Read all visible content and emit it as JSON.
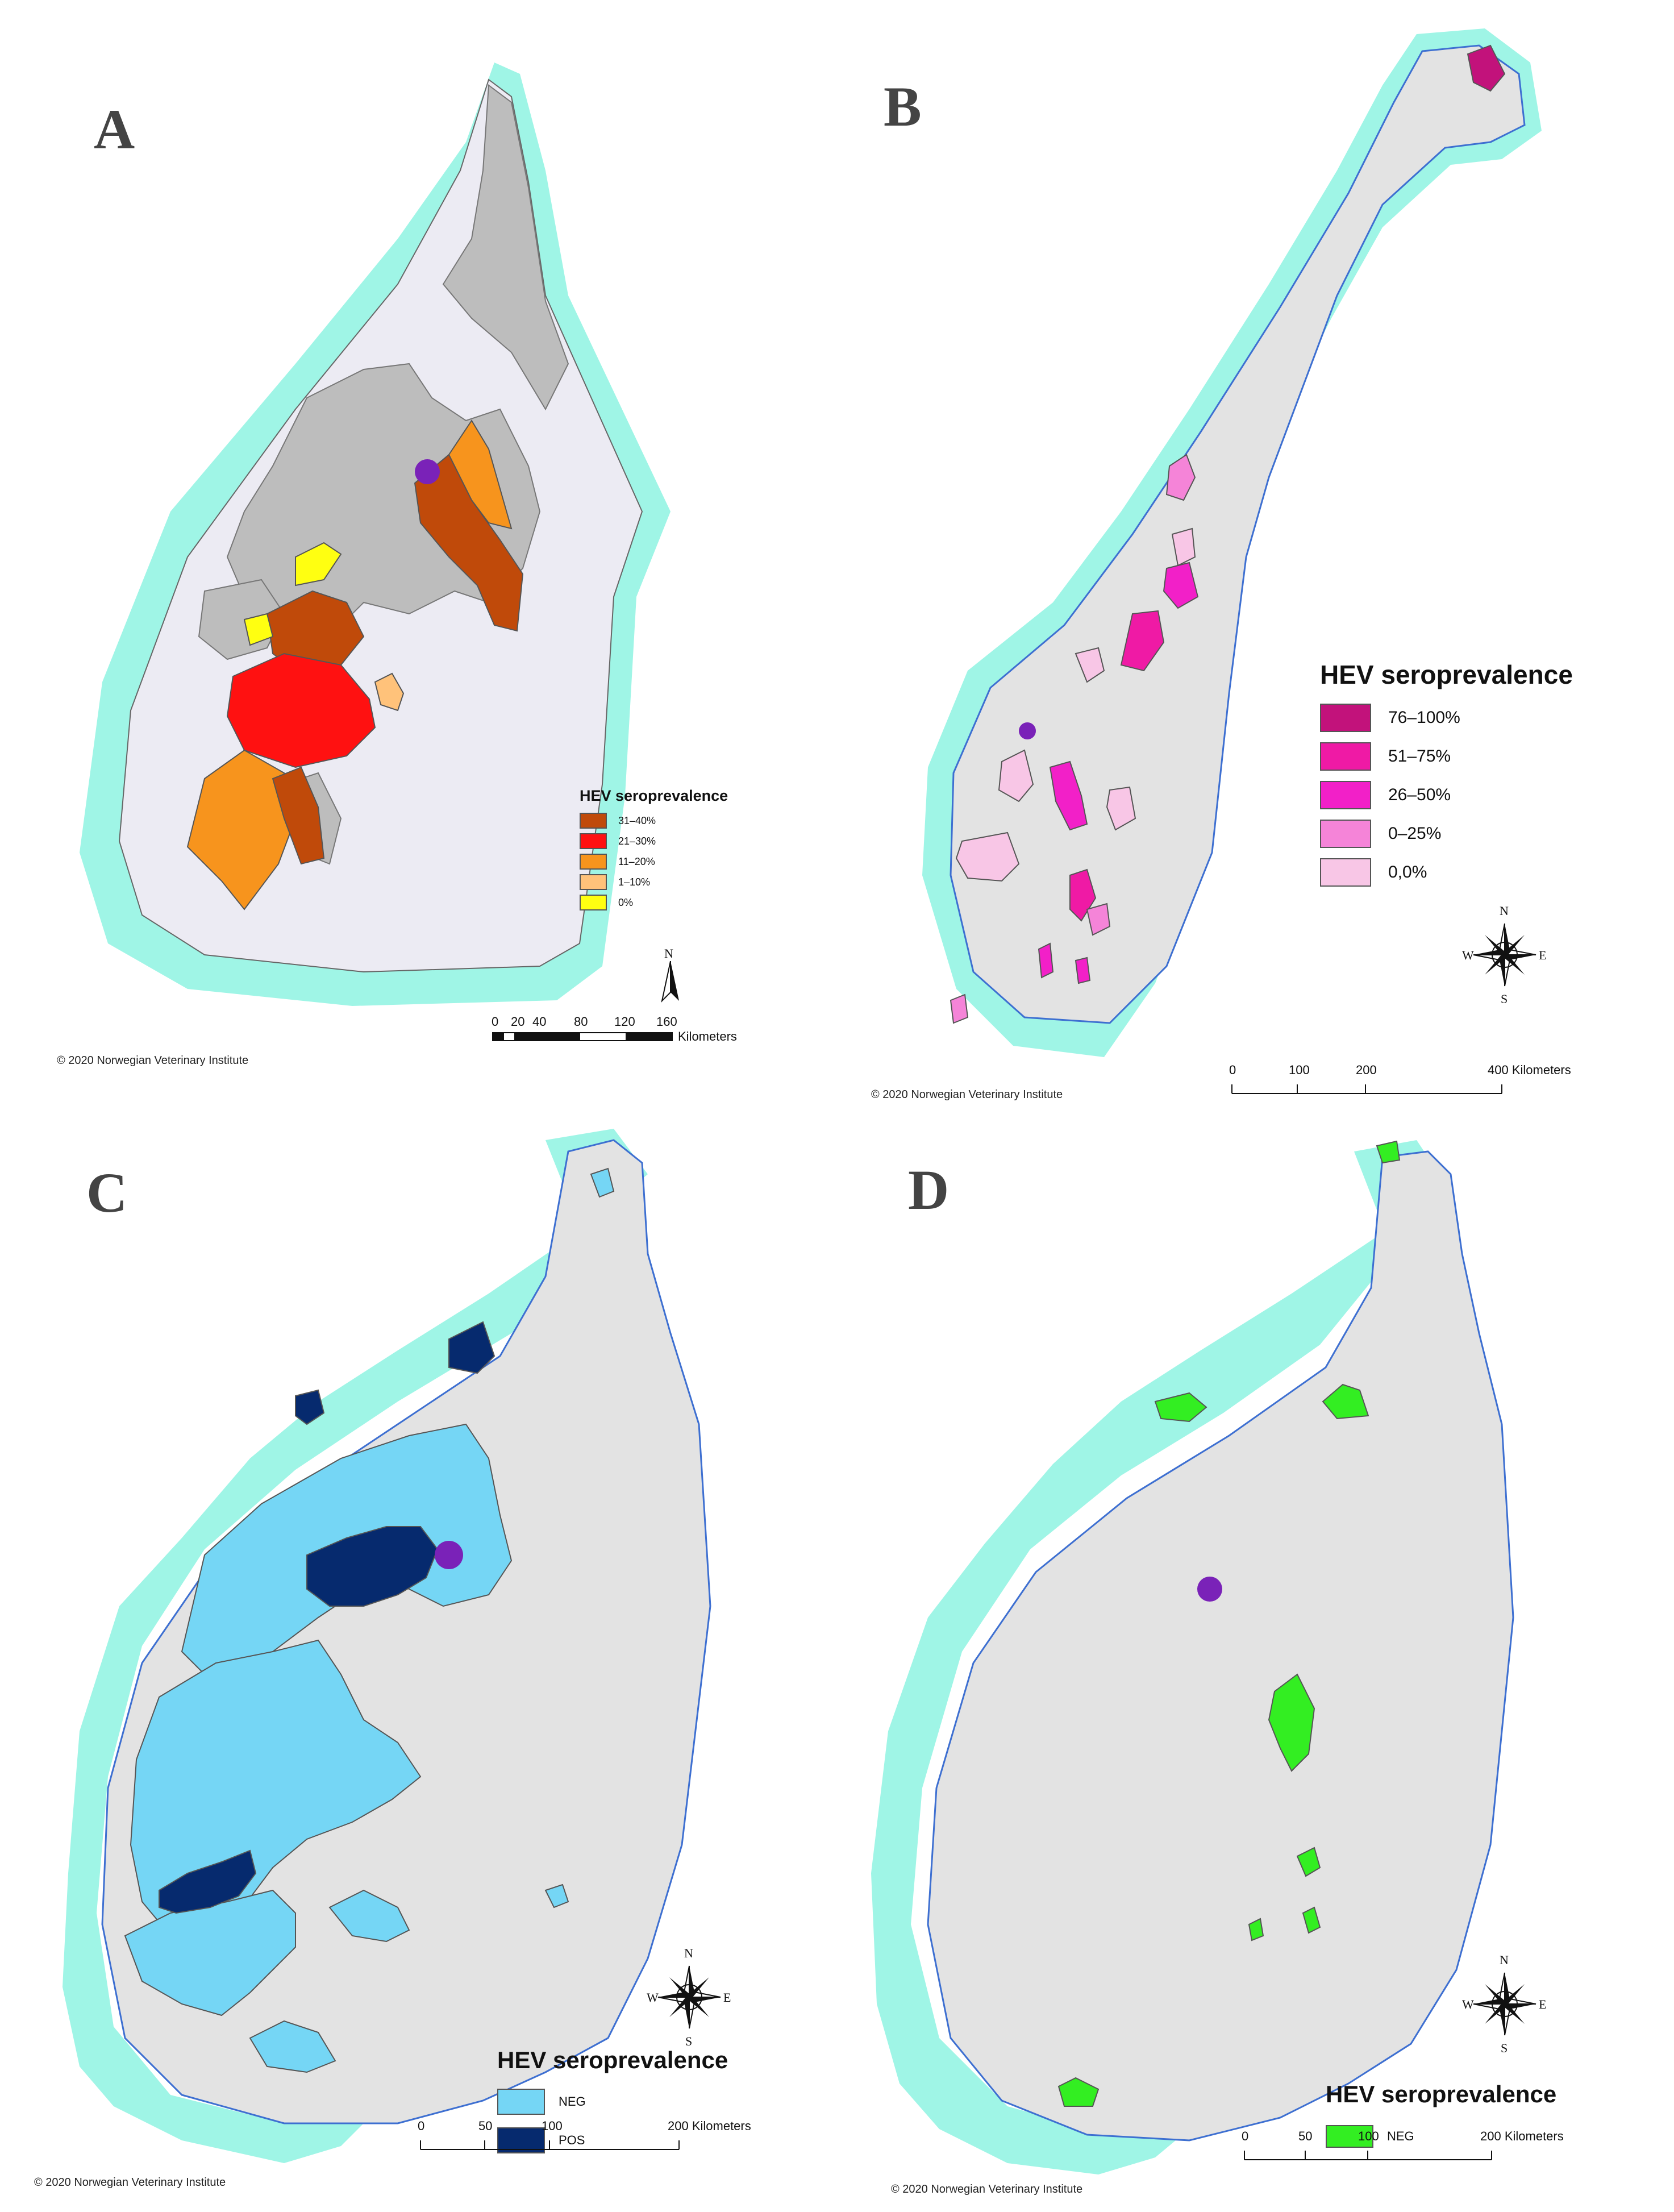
{
  "colors": {
    "sea": "#9ff5e6",
    "coast": "#3d6fd1",
    "land": "#e3e3e3",
    "landA": "#ecebf3",
    "muni": "#bdbdbd",
    "dot": "#7a22b8"
  },
  "panels": [
    {
      "letter": "A",
      "legend": {
        "title": "HEV seroprevalence",
        "items": [
          {
            "label": "31–40%",
            "color": "#c04a0a"
          },
          {
            "label": "21–30%",
            "color": "#ff1111"
          },
          {
            "label": "11–20%",
            "color": "#f7941d"
          },
          {
            "label": "1–10%",
            "color": "#ffc27a"
          },
          {
            "label": "0%",
            "color": "#ffff11"
          }
        ]
      },
      "copyright": "© 2020 Norwegian Veterinary Institute",
      "scale": {
        "ticks": [
          "0",
          "20",
          "40",
          "80",
          "120",
          "160"
        ],
        "unit": "Kilometers"
      },
      "compass": {
        "n": "N"
      }
    },
    {
      "letter": "B",
      "legend": {
        "title": "HEV seroprevalence",
        "items": [
          {
            "label": "76–100%",
            "color": "#c2127b"
          },
          {
            "label": "51–75%",
            "color": "#ef1aa5"
          },
          {
            "label": "26–50%",
            "color": "#f220c8"
          },
          {
            "label": "0–25%",
            "color": "#f584d8"
          },
          {
            "label": "0,0%",
            "color": "#f8c6e6"
          }
        ]
      },
      "copyright": "© 2020 Norwegian Veterinary Institute",
      "scale": {
        "ticks": [
          "0",
          "100",
          "200",
          "400 Kilometers"
        ]
      },
      "compass": {
        "n": "N",
        "s": "S",
        "e": "E",
        "w": "W"
      }
    },
    {
      "letter": "C",
      "legend": {
        "title": "HEV seroprevalence",
        "items": [
          {
            "label": "NEG",
            "color": "#75d6f5"
          },
          {
            "label": "POS",
            "color": "#062a6e"
          }
        ]
      },
      "copyright": "© 2020 Norwegian Veterinary Institute",
      "scale": {
        "ticks": [
          "0",
          "50",
          "100",
          "200 Kilometers"
        ]
      },
      "compass": {
        "n": "N",
        "s": "S",
        "e": "E",
        "w": "W"
      }
    },
    {
      "letter": "D",
      "legend": {
        "title": "HEV seroprevalence",
        "items": [
          {
            "label": "NEG",
            "color": "#33ee22"
          }
        ]
      },
      "copyright": "© 2020 Norwegian Veterinary Institute",
      "scale": {
        "ticks": [
          "0",
          "50",
          "100",
          "200 Kilometers"
        ]
      },
      "compass": {
        "n": "N",
        "s": "S",
        "e": "E",
        "w": "W"
      }
    }
  ]
}
